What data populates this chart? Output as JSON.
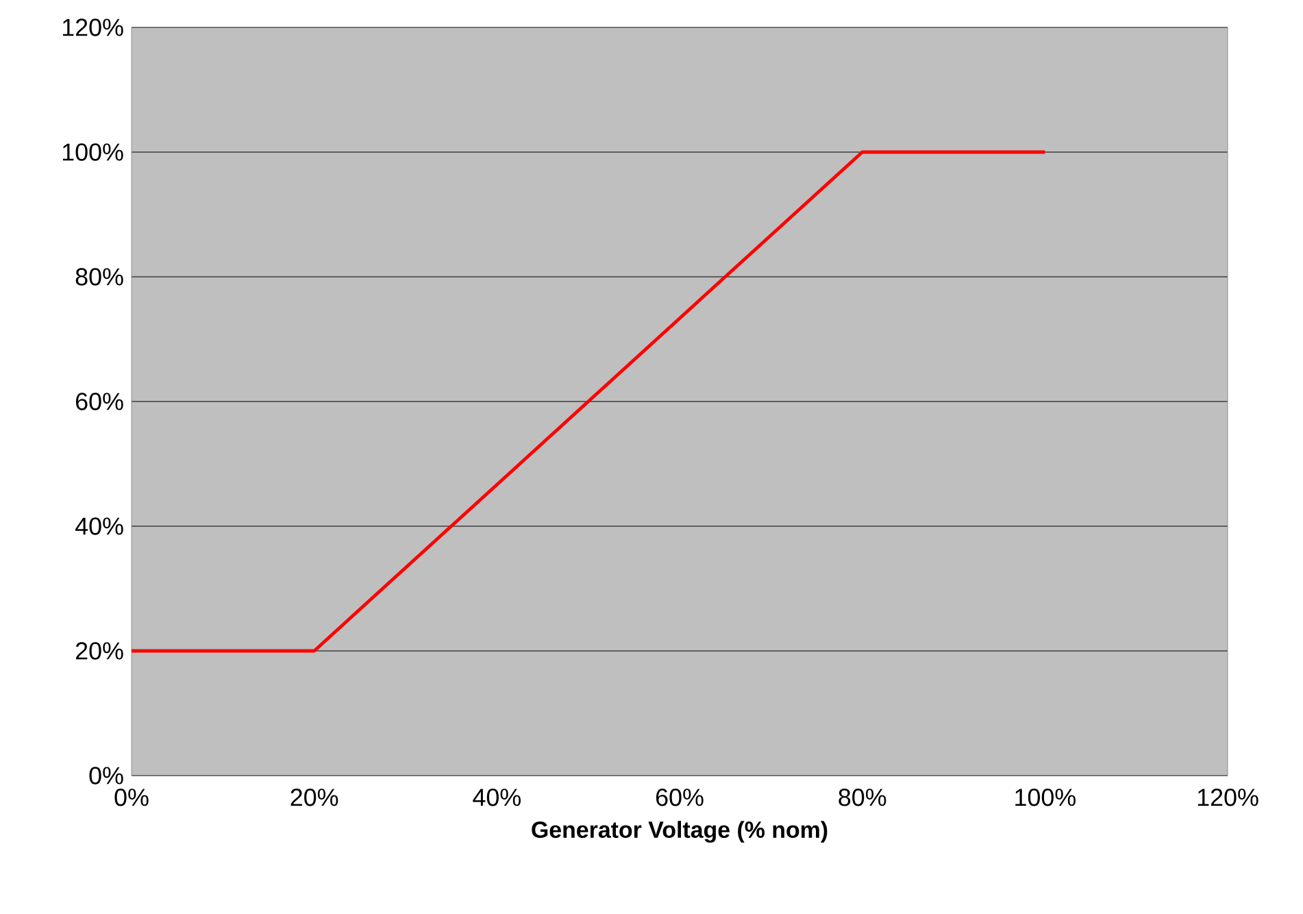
{
  "chart_data": {
    "type": "line",
    "xlabel": "Generator Voltage (% nom)",
    "x": [
      0,
      20,
      80,
      100
    ],
    "series": [
      {
        "color": "#ff0000",
        "values": [
          20,
          20,
          100,
          100
        ]
      }
    ],
    "xlim": [
      0,
      120
    ],
    "ylim": [
      0,
      120
    ],
    "xticks": [
      {
        "value": 0,
        "label": "0%"
      },
      {
        "value": 20,
        "label": "20%"
      },
      {
        "value": 40,
        "label": "40%"
      },
      {
        "value": 60,
        "label": "60%"
      },
      {
        "value": 80,
        "label": "80%"
      },
      {
        "value": 100,
        "label": "100%"
      },
      {
        "value": 120,
        "label": "120%"
      }
    ],
    "yticks": [
      {
        "value": 0,
        "label": "0%"
      },
      {
        "value": 20,
        "label": "20%"
      },
      {
        "value": 40,
        "label": "40%"
      },
      {
        "value": 60,
        "label": "60%"
      },
      {
        "value": 80,
        "label": "80%"
      },
      {
        "value": 100,
        "label": "100%"
      },
      {
        "value": 120,
        "label": "120%"
      }
    ],
    "grid": "y",
    "marker": "none",
    "line_style": "solid"
  }
}
